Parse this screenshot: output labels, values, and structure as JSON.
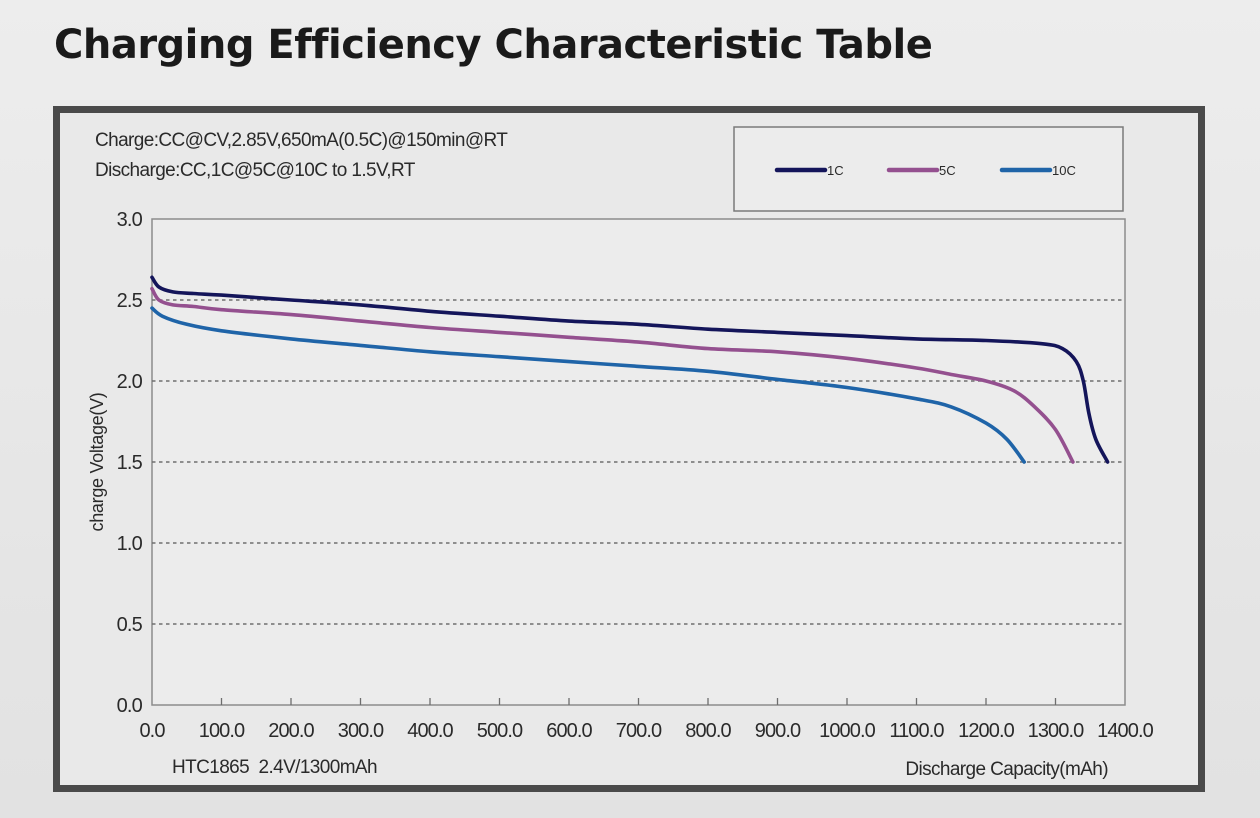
{
  "page": {
    "title": "Charging Efficiency Characteristic Table"
  },
  "chart_data": {
    "type": "line",
    "title": "Charging Efficiency Characteristic Table",
    "annotations": {
      "charge_condition": "Charge:CC@CV,2.85V,650mA(0.5C)@150min@RT",
      "discharge_condition": "Discharge:CC,1C@5C@10C to 1.5V,RT",
      "model": "HTC1865  2.4V/1300mAh"
    },
    "xlabel": "Discharge Capacity(mAh)",
    "ylabel": "charge Voltage(V)",
    "xlim": [
      0,
      1400
    ],
    "ylim": [
      0,
      3.0
    ],
    "xticks": [
      "0.0",
      "100.0",
      "200.0",
      "300.0",
      "400.0",
      "500.0",
      "600.0",
      "700.0",
      "800.0",
      "900.0",
      "1000.0",
      "1100.0",
      "1200.0",
      "1300.0",
      "1400.0"
    ],
    "yticks": [
      "0.0",
      "0.5",
      "1.0",
      "1.5",
      "2.0",
      "2.5",
      "3.0"
    ],
    "grid": "horizontal-dashed",
    "legend_position": "top-right",
    "series": [
      {
        "name": "1C",
        "color": "#14155a",
        "points": [
          [
            0,
            2.64
          ],
          [
            10,
            2.58
          ],
          [
            30,
            2.55
          ],
          [
            60,
            2.54
          ],
          [
            100,
            2.53
          ],
          [
            200,
            2.5
          ],
          [
            300,
            2.47
          ],
          [
            400,
            2.43
          ],
          [
            500,
            2.4
          ],
          [
            600,
            2.37
          ],
          [
            700,
            2.35
          ],
          [
            800,
            2.32
          ],
          [
            900,
            2.3
          ],
          [
            1000,
            2.28
          ],
          [
            1100,
            2.26
          ],
          [
            1200,
            2.25
          ],
          [
            1280,
            2.23
          ],
          [
            1310,
            2.2
          ],
          [
            1330,
            2.12
          ],
          [
            1340,
            2.0
          ],
          [
            1348,
            1.8
          ],
          [
            1358,
            1.64
          ],
          [
            1375,
            1.5
          ]
        ]
      },
      {
        "name": "5C",
        "color": "#94508f",
        "points": [
          [
            0,
            2.57
          ],
          [
            10,
            2.5
          ],
          [
            30,
            2.47
          ],
          [
            60,
            2.46
          ],
          [
            100,
            2.44
          ],
          [
            200,
            2.41
          ],
          [
            300,
            2.37
          ],
          [
            400,
            2.33
          ],
          [
            500,
            2.3
          ],
          [
            600,
            2.27
          ],
          [
            700,
            2.24
          ],
          [
            800,
            2.2
          ],
          [
            900,
            2.18
          ],
          [
            1000,
            2.14
          ],
          [
            1100,
            2.08
          ],
          [
            1150,
            2.04
          ],
          [
            1200,
            2.0
          ],
          [
            1240,
            1.94
          ],
          [
            1270,
            1.84
          ],
          [
            1300,
            1.7
          ],
          [
            1325,
            1.5
          ]
        ]
      },
      {
        "name": "10C",
        "color": "#1f64a8",
        "points": [
          [
            0,
            2.45
          ],
          [
            15,
            2.4
          ],
          [
            50,
            2.35
          ],
          [
            100,
            2.31
          ],
          [
            200,
            2.26
          ],
          [
            300,
            2.22
          ],
          [
            400,
            2.18
          ],
          [
            500,
            2.15
          ],
          [
            600,
            2.12
          ],
          [
            700,
            2.09
          ],
          [
            800,
            2.06
          ],
          [
            900,
            2.01
          ],
          [
            1000,
            1.96
          ],
          [
            1100,
            1.89
          ],
          [
            1150,
            1.84
          ],
          [
            1200,
            1.74
          ],
          [
            1230,
            1.64
          ],
          [
            1255,
            1.5
          ]
        ]
      }
    ]
  }
}
